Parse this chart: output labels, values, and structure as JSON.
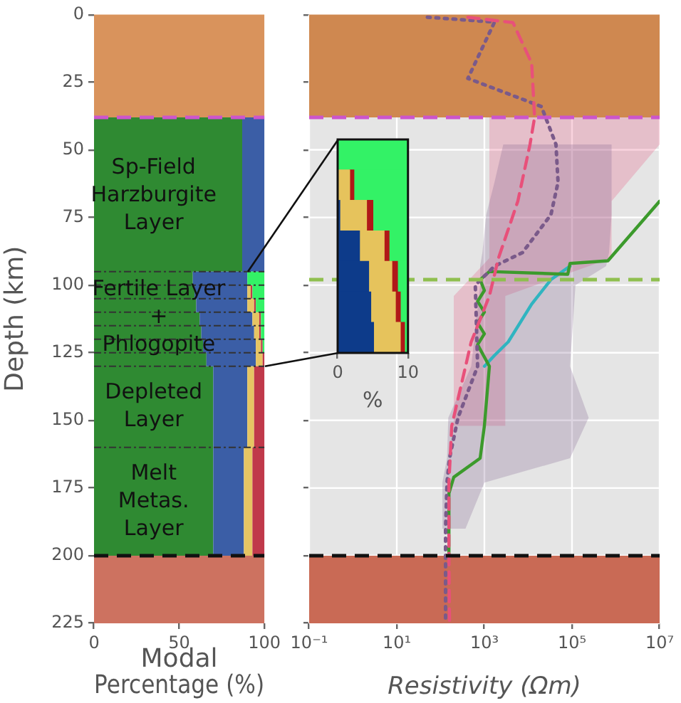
{
  "chart_data": [
    {
      "type": "area",
      "orientation": "horizontal",
      "stacked": true,
      "ylabel": "Depth (km)",
      "xlabel": "Modal Percentage (%)",
      "x": [
        38,
        95,
        95,
        100,
        100,
        105,
        105,
        110,
        110,
        115,
        115,
        120,
        120,
        125,
        125,
        130,
        130,
        160,
        160,
        200
      ],
      "series": [
        {
          "color": "#2f8a32",
          "values": [
            87,
            87,
            58,
            58,
            59,
            59,
            60,
            60,
            62,
            62,
            63,
            63,
            64,
            64,
            66,
            66,
            70,
            70,
            70,
            70
          ]
        },
        {
          "color": "#3b5ea6",
          "values": [
            13,
            13,
            32,
            32,
            31,
            31,
            30,
            30,
            31,
            31,
            31,
            31,
            31,
            31,
            29,
            29,
            20,
            20,
            18,
            18
          ]
        },
        {
          "color": "#e6c563",
          "values": [
            0,
            0,
            0,
            0,
            2,
            2,
            4,
            4,
            4,
            4,
            3,
            3,
            3,
            3,
            4,
            4,
            4,
            4,
            5,
            5
          ]
        },
        {
          "color": "#c0394a",
          "values": [
            0,
            0,
            0,
            0,
            1,
            1,
            1,
            1,
            1,
            1,
            1,
            1,
            1,
            1,
            1,
            1,
            6,
            6,
            7,
            7
          ]
        },
        {
          "color": "#33f266",
          "values": [
            null,
            null,
            10,
            10,
            7,
            7,
            5,
            5,
            2,
            2,
            2,
            2,
            1,
            1,
            null,
            null,
            null,
            null,
            null,
            null
          ]
        }
      ],
      "xlim": [
        0,
        100
      ],
      "xticks": [
        0,
        50,
        100
      ],
      "ylim": [
        225,
        0
      ],
      "yticks": [
        0,
        25,
        50,
        75,
        100,
        125,
        150,
        175,
        200,
        225
      ],
      "bands": [
        {
          "axis": "y",
          "from": 0,
          "to": 38,
          "color": "#d9935c"
        },
        {
          "axis": "y",
          "from": 200,
          "to": 225,
          "color": "#cd7260"
        }
      ],
      "ref_lines": [
        {
          "axis": "y",
          "value": 38,
          "color": "#cc55cc",
          "line_style": "dashed"
        },
        {
          "axis": "y",
          "value": 200,
          "color": "#111111",
          "line_style": "dashed"
        },
        {
          "axis": "y",
          "value": 95,
          "color": "#333333",
          "line_style": "dotted"
        },
        {
          "axis": "y",
          "value": 100,
          "color": "#333333",
          "line_style": "dotted"
        },
        {
          "axis": "y",
          "value": 105,
          "color": "#333333",
          "line_style": "dotted"
        },
        {
          "axis": "y",
          "value": 110,
          "color": "#333333",
          "line_style": "dotted"
        },
        {
          "axis": "y",
          "value": 115,
          "color": "#333333",
          "line_style": "dotted"
        },
        {
          "axis": "y",
          "value": 120,
          "color": "#333333",
          "line_style": "dotted"
        },
        {
          "axis": "y",
          "value": 125,
          "color": "#333333",
          "line_style": "dotted"
        },
        {
          "axis": "y",
          "value": 130,
          "color": "#333333",
          "line_style": "dotted"
        },
        {
          "axis": "y",
          "value": 160,
          "color": "#333333",
          "line_style": "dotted"
        }
      ],
      "annotations": [
        "Sp-Field\nHarzburgite\nLayer",
        "Fertile Layer\n+\nPhlogopite",
        "Depleted\nLayer",
        "Melt\nMetas.\nLayer"
      ],
      "grid": false
    },
    {
      "type": "line",
      "orientation": "horizontal",
      "xlabel": "Resistivity (Ωm)",
      "log": "x",
      "grid": true,
      "tick_labels": "x",
      "xlim": [
        0.1,
        10000000
      ],
      "xticks": [
        {
          "value": 0.1,
          "label": "10⁻¹"
        },
        {
          "value": 10,
          "label": "10¹"
        },
        {
          "value": 1000,
          "label": "10³"
        },
        {
          "value": 100000,
          "label": "10⁵"
        },
        {
          "value": 10000000,
          "label": "10⁷"
        }
      ],
      "ylim": [
        225,
        0
      ],
      "yticks": [
        0,
        25,
        50,
        75,
        100,
        125,
        150,
        175,
        200,
        225
      ],
      "series": [
        {
          "color": "#e8507a",
          "line_style": "dashed",
          "x": [
            1,
            3,
            18,
            38,
            48,
            69,
            90,
            104,
            121,
            152,
            173,
            200,
            225
          ],
          "values": [
            420,
            4500,
            12000,
            14000,
            11000,
            5800,
            2100,
            1300,
            500,
            180,
            155,
            155,
            160
          ],
          "lower": [
            null,
            null,
            null,
            1300,
            1300,
            1300,
            1300,
            200,
            200,
            200,
            null,
            null,
            null
          ],
          "upper": [
            null,
            null,
            null,
            10000000,
            10000000,
            800000,
            800000,
            3000,
            3000,
            3000,
            null,
            null,
            null
          ]
        },
        {
          "color": "#7a5a8a",
          "line_style": "dotted",
          "x": [
            1,
            2.8,
            23.6,
            34,
            48,
            62,
            74,
            88,
            93,
            100,
            130,
            149,
            164,
            173,
            190,
            200,
            225
          ],
          "values": [
            50,
            1700,
            420,
            20000,
            43000,
            48000,
            33000,
            7400,
            1700,
            620,
            700,
            250,
            160,
            140,
            130,
            130,
            130
          ],
          "lower": [
            null,
            null,
            null,
            null,
            2700,
            1700,
            1100,
            900,
            800,
            800,
            500,
            150,
            140,
            110,
            110,
            null,
            null
          ],
          "upper": [
            null,
            null,
            null,
            null,
            800000,
            800000,
            800000,
            700000,
            600000,
            120000,
            90000,
            240000,
            90000,
            1000,
            370,
            null,
            null
          ]
        },
        {
          "color": "#3c9a2c",
          "line_style": "solid",
          "x": [
            69,
            91,
            92,
            96,
            95,
            98,
            102,
            106,
            110,
            114,
            118,
            122,
            130,
            152,
            164,
            171,
            177,
            200
          ],
          "values": [
            10000000,
            660000,
            90000,
            80000,
            1300,
            800,
            1000,
            700,
            1000,
            700,
            1000,
            700,
            1300,
            1000,
            800,
            200,
            155,
            155
          ]
        },
        {
          "color": "#30b4c0",
          "line_style": "solid",
          "x": [
            93,
            98,
            107,
            121,
            126,
            130
          ],
          "values": [
            90000,
            33000,
            12000,
            3500,
            1700,
            1000
          ]
        }
      ],
      "bands": [
        {
          "axis": "y",
          "from": 0,
          "to": 38,
          "color": "#cf8850"
        },
        {
          "axis": "y",
          "from": 200,
          "to": 225,
          "color": "#c96a55"
        }
      ],
      "ref_lines": [
        {
          "axis": "y",
          "value": 38,
          "color": "#cc55cc",
          "line_style": "dashed"
        },
        {
          "axis": "y",
          "value": 98,
          "color": "#8fbf4f",
          "line_style": "dashed"
        },
        {
          "axis": "y",
          "value": 200,
          "color": "#111111",
          "line_style": "dashed"
        }
      ]
    },
    {
      "type": "bar",
      "orientation": "horizontal",
      "stacked": true,
      "xlabel": "%",
      "tick_labels": "x",
      "categories": [
        null,
        null,
        null,
        null,
        null,
        null,
        null
      ],
      "series": [
        {
          "color": "#0d3b8a",
          "values": [
            0,
            0,
            0.3,
            3.1,
            4.4,
            4.7,
            5.1
          ]
        },
        {
          "color": "#e6c35c",
          "values": [
            0,
            1.7,
            3.8,
            3.5,
            3.3,
            3.5,
            3.8
          ]
        },
        {
          "color": "#b01818",
          "values": [
            0,
            0.6,
            0.9,
            0.7,
            0.8,
            0.7,
            0.6
          ]
        },
        {
          "color": "#33f266",
          "values": [
            10,
            7.7,
            5,
            2.7,
            1.5,
            1.1,
            0.5
          ]
        }
      ],
      "xlim": [
        0,
        10
      ],
      "xticks": [
        0,
        10
      ]
    }
  ]
}
